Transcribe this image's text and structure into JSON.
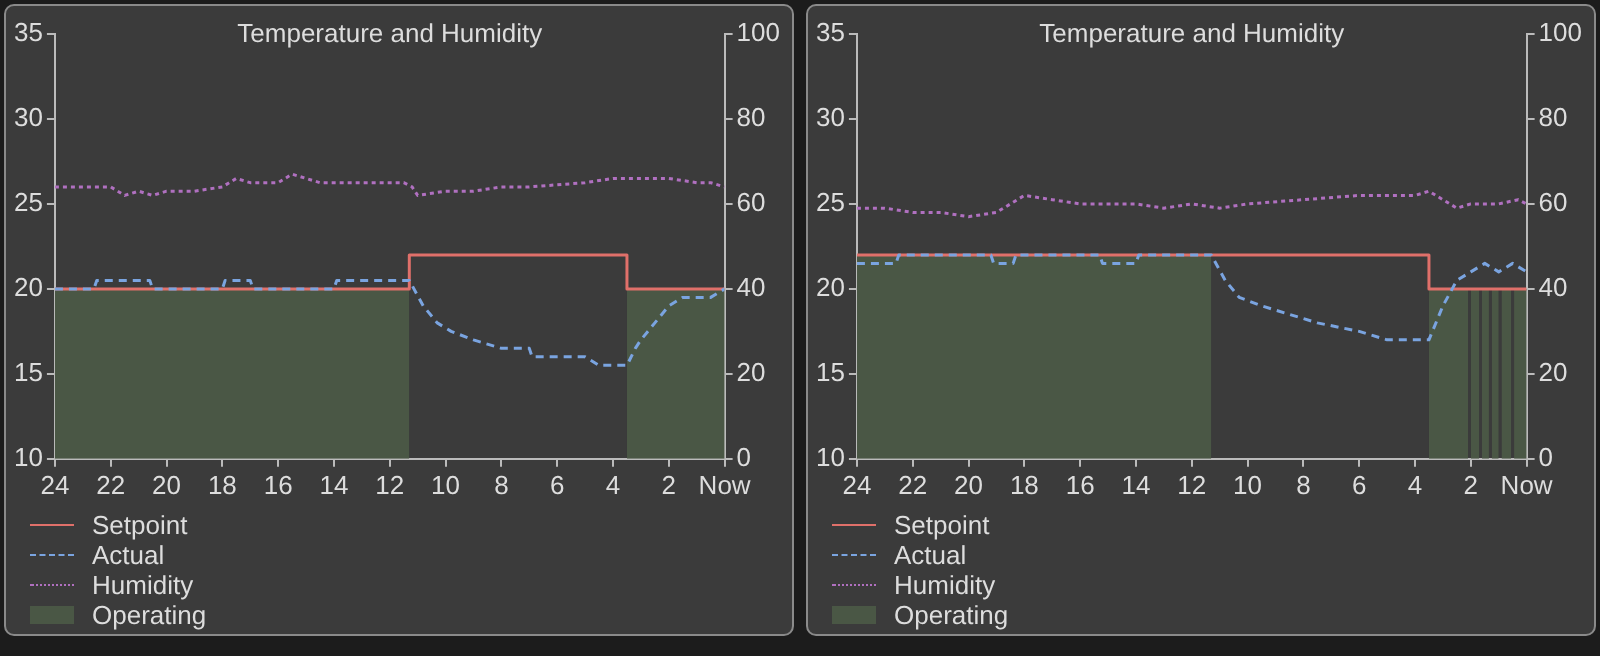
{
  "chart_data": [
    {
      "type": "line",
      "title": "Temperature and Humidity",
      "xlim": [
        24,
        0
      ],
      "xticks": [
        24,
        22,
        20,
        18,
        16,
        14,
        12,
        10,
        8,
        6,
        4,
        2,
        {
          "value": 0,
          "label": "Now"
        }
      ],
      "ylim": [
        10,
        35
      ],
      "yticks": [
        10,
        15,
        20,
        25,
        30,
        35
      ],
      "y2lim": [
        0,
        100
      ],
      "y2ticks": [
        0,
        20,
        40,
        60,
        80,
        100
      ],
      "grid": false,
      "legend": "bottom left",
      "series": [
        {
          "name": "Setpoint",
          "type": "step",
          "color": "#e0706a",
          "line_style": "solid",
          "x": [
            24,
            11.3,
            3.5,
            0
          ],
          "values": [
            20,
            22,
            20,
            20
          ]
        },
        {
          "name": "Actual",
          "color": "#7aa4e0",
          "line_style": "dashed",
          "x": [
            24,
            22.6,
            22.5,
            20.6,
            20.5,
            18,
            17.9,
            17,
            16.9,
            14,
            13.9,
            11.3,
            10.8,
            10.3,
            9.8,
            9,
            8,
            7,
            6.9,
            5,
            4.5,
            3.5,
            3.2,
            3,
            2.5,
            2,
            1.5,
            0.5,
            0
          ],
          "values": [
            20,
            20,
            20.5,
            20.5,
            20,
            20,
            20.5,
            20.5,
            20,
            20,
            20.5,
            20.5,
            19,
            18,
            17.5,
            17,
            16.5,
            16.5,
            16,
            16,
            15.5,
            15.5,
            16.5,
            17,
            18,
            19,
            19.5,
            19.5,
            20
          ]
        },
        {
          "name": "Humidity",
          "axis": "y2",
          "color": "#b070c0",
          "line_style": "dotted",
          "x": [
            24,
            23,
            22,
            21.5,
            21,
            20.5,
            20,
            19,
            18,
            17.5,
            17,
            16,
            15.5,
            14.5,
            13.5,
            12.5,
            11.5,
            11.2,
            11,
            10,
            9,
            8,
            7,
            5,
            4,
            3,
            2,
            1,
            0.5,
            0
          ],
          "values": [
            64,
            64,
            64,
            62,
            63,
            62,
            63,
            63,
            64,
            66,
            65,
            65,
            67,
            65,
            65,
            65,
            65,
            64,
            62,
            63,
            63,
            64,
            64,
            65,
            66,
            66,
            66,
            65,
            65,
            64
          ]
        },
        {
          "name": "Operating",
          "type": "area",
          "color": "#4a5745",
          "x": [
            24,
            11.3,
            7,
            3.5,
            0
          ],
          "values": [
            20,
            20,
            null,
            20,
            20
          ]
        }
      ]
    },
    {
      "type": "line",
      "title": "Temperature and Humidity",
      "xlim": [
        24,
        0
      ],
      "xticks": [
        24,
        22,
        20,
        18,
        16,
        14,
        12,
        10,
        8,
        6,
        4,
        2,
        {
          "value": 0,
          "label": "Now"
        }
      ],
      "ylim": [
        10,
        35
      ],
      "yticks": [
        10,
        15,
        20,
        25,
        30,
        35
      ],
      "y2lim": [
        0,
        100
      ],
      "y2ticks": [
        0,
        20,
        40,
        60,
        80,
        100
      ],
      "grid": false,
      "legend": "bottom left",
      "series": [
        {
          "name": "Setpoint",
          "type": "step",
          "color": "#e0706a",
          "line_style": "solid",
          "x": [
            24,
            3.5,
            0
          ],
          "values": [
            22,
            20,
            20
          ]
        },
        {
          "name": "Actual",
          "color": "#7aa4e0",
          "line_style": "dashed",
          "x": [
            24,
            22.6,
            22.5,
            21,
            20.9,
            19.2,
            19.1,
            18.4,
            18.3,
            15.3,
            15.2,
            14,
            13.9,
            12.9,
            12.8,
            11.3,
            10.8,
            10.3,
            9.5,
            8.5,
            7.5,
            6,
            5,
            3.5,
            3,
            2.5,
            2,
            1.5,
            1,
            0.5,
            0
          ],
          "values": [
            21.5,
            21.5,
            22,
            22,
            22,
            22,
            21.5,
            21.5,
            22,
            22,
            21.5,
            21.5,
            22,
            22,
            22,
            22,
            20.5,
            19.5,
            19,
            18.5,
            18,
            17.5,
            17,
            17,
            19,
            20.5,
            21,
            21.5,
            21,
            21.5,
            21
          ]
        },
        {
          "name": "Humidity",
          "axis": "y2",
          "color": "#b070c0",
          "line_style": "dotted",
          "x": [
            24,
            23,
            22,
            21,
            20,
            19,
            18.5,
            18,
            17,
            16,
            14,
            13,
            12,
            11,
            10,
            8,
            6,
            4,
            3.5,
            3,
            2.5,
            2,
            1,
            0.3,
            0
          ],
          "values": [
            59,
            59,
            58,
            58,
            57,
            58,
            60,
            62,
            61,
            60,
            60,
            59,
            60,
            59,
            60,
            61,
            62,
            62,
            63,
            61,
            59,
            60,
            60,
            61,
            60
          ]
        },
        {
          "name": "Operating",
          "type": "area",
          "color": "#4a5745",
          "x": [
            24,
            11.3,
            7,
            3.5,
            2.1,
            2.05,
            2,
            1.7,
            1.65,
            1.6,
            1.35,
            1.3,
            1.25,
            1,
            0.95,
            0.9,
            0.55,
            0.5,
            0.45,
            0
          ],
          "values": [
            22,
            22,
            null,
            20,
            20,
            null,
            20,
            20,
            null,
            20,
            20,
            null,
            20,
            20,
            null,
            20,
            20,
            null,
            20,
            20
          ]
        }
      ]
    }
  ]
}
